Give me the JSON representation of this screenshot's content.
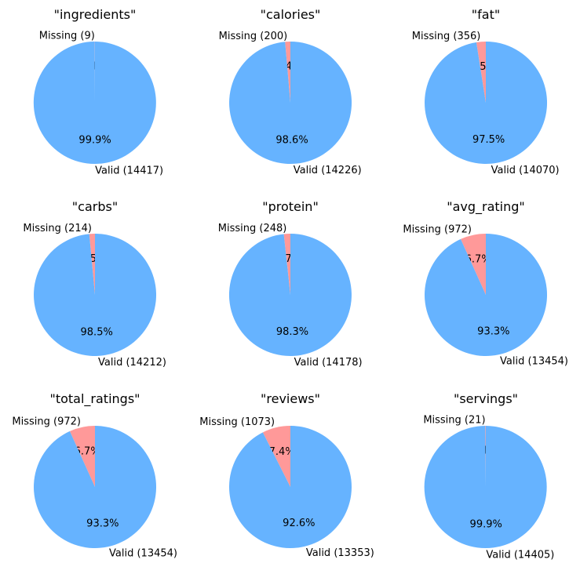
{
  "chart_data": [
    {
      "type": "pie",
      "title": "\"ingredients\"",
      "slices": [
        {
          "label": "Missing (9)",
          "value": 9,
          "pct_label": "0.1%",
          "color": "#ff9999"
        },
        {
          "label": "Valid (14417)",
          "value": 14417,
          "pct_label": "99.9%",
          "color": "#66b3ff"
        }
      ]
    },
    {
      "type": "pie",
      "title": "\"calories\"",
      "slices": [
        {
          "label": "Missing (200)",
          "value": 200,
          "pct_label": "1.4%",
          "color": "#ff9999"
        },
        {
          "label": "Valid (14226)",
          "value": 14226,
          "pct_label": "98.6%",
          "color": "#66b3ff"
        }
      ]
    },
    {
      "type": "pie",
      "title": "\"fat\"",
      "slices": [
        {
          "label": "Missing (356)",
          "value": 356,
          "pct_label": "2.5%",
          "color": "#ff9999"
        },
        {
          "label": "Valid (14070)",
          "value": 14070,
          "pct_label": "97.5%",
          "color": "#66b3ff"
        }
      ]
    },
    {
      "type": "pie",
      "title": "\"carbs\"",
      "slices": [
        {
          "label": "Missing (214)",
          "value": 214,
          "pct_label": "1.5%",
          "color": "#ff9999"
        },
        {
          "label": "Valid (14212)",
          "value": 14212,
          "pct_label": "98.5%",
          "color": "#66b3ff"
        }
      ]
    },
    {
      "type": "pie",
      "title": "\"protein\"",
      "slices": [
        {
          "label": "Missing (248)",
          "value": 248,
          "pct_label": "1.7%",
          "color": "#ff9999"
        },
        {
          "label": "Valid (14178)",
          "value": 14178,
          "pct_label": "98.3%",
          "color": "#66b3ff"
        }
      ]
    },
    {
      "type": "pie",
      "title": "\"avg_rating\"",
      "slices": [
        {
          "label": "Missing (972)",
          "value": 972,
          "pct_label": "6.7%",
          "color": "#ff9999"
        },
        {
          "label": "Valid (13454)",
          "value": 13454,
          "pct_label": "93.3%",
          "color": "#66b3ff"
        }
      ]
    },
    {
      "type": "pie",
      "title": "\"total_ratings\"",
      "slices": [
        {
          "label": "Missing (972)",
          "value": 972,
          "pct_label": "6.7%",
          "color": "#ff9999"
        },
        {
          "label": "Valid (13454)",
          "value": 13454,
          "pct_label": "93.3%",
          "color": "#66b3ff"
        }
      ]
    },
    {
      "type": "pie",
      "title": "\"reviews\"",
      "slices": [
        {
          "label": "Missing (1073)",
          "value": 1073,
          "pct_label": "7.4%",
          "color": "#ff9999"
        },
        {
          "label": "Valid (13353)",
          "value": 13353,
          "pct_label": "92.6%",
          "color": "#66b3ff"
        }
      ]
    },
    {
      "type": "pie",
      "title": "\"servings\"",
      "slices": [
        {
          "label": "Missing (21)",
          "value": 21,
          "pct_label": "0.1%",
          "color": "#ff9999"
        },
        {
          "label": "Valid (14405)",
          "value": 14405,
          "pct_label": "99.9%",
          "color": "#66b3ff"
        }
      ]
    }
  ]
}
